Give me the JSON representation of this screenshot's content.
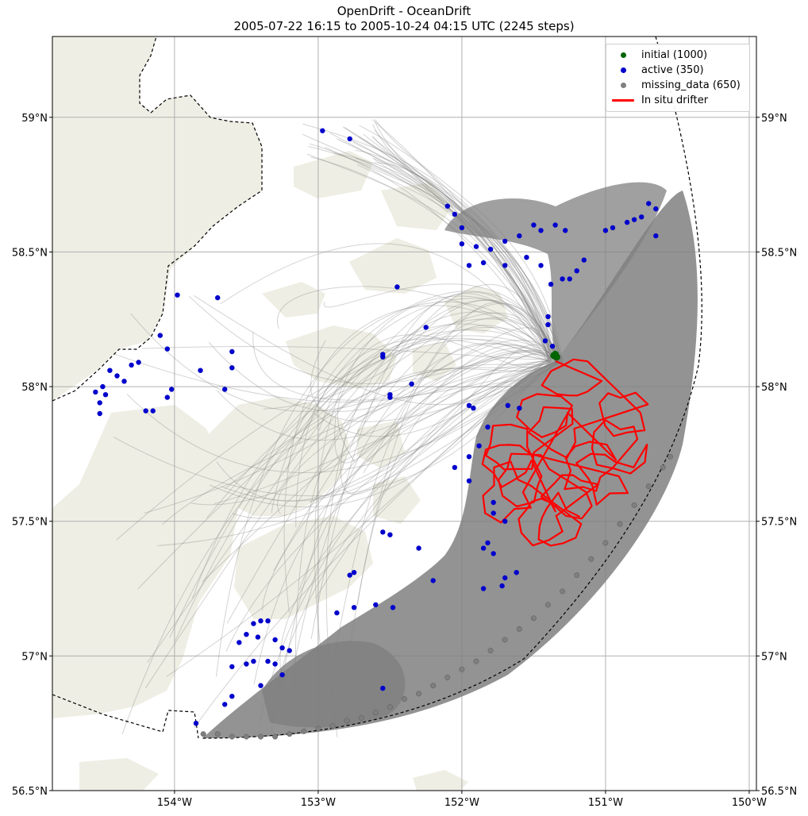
{
  "title": {
    "line1": "OpenDrift - OceanDrift",
    "line2": "2005-07-22 16:15 to 2005-10-24 04:15 UTC (2245 steps)"
  },
  "map": {
    "lon_range": [
      -154.85,
      -149.95
    ],
    "lat_range": [
      56.5,
      59.3
    ],
    "lon_ticks": [
      -154,
      -153,
      -152,
      -151,
      -150
    ],
    "lon_tick_labels": [
      "154°W",
      "153°W",
      "152°W",
      "151°W",
      "150°W"
    ],
    "lat_ticks": [
      56.5,
      57.0,
      57.5,
      58.0,
      58.5,
      59.0
    ],
    "lat_tick_labels": [
      "56.5°N",
      "57°N",
      "57.5°N",
      "58°N",
      "58.5°N",
      "59°N"
    ],
    "grid": true,
    "colors": {
      "land": "#eeeee4",
      "ocean": "#ffffff",
      "trajectory": "#808080",
      "initial": "#006400",
      "active": "#0000cc",
      "missing_data": "#7f7f7f",
      "drifter": "#ff0000",
      "boundary": "#000000"
    }
  },
  "legend": {
    "position": "top-right",
    "items": [
      {
        "label": "initial (1000)",
        "symbol": "dot",
        "color": "#006400"
      },
      {
        "label": "active (350)",
        "symbol": "dot",
        "color": "#0000cc"
      },
      {
        "label": "missing_data (650)",
        "symbol": "dot",
        "color": "#7f7f7f"
      },
      {
        "label": "In situ drifter",
        "symbol": "line",
        "color": "#ff0000"
      }
    ]
  },
  "chart_data": {
    "type": "scatter",
    "title": "OpenDrift - OceanDrift",
    "subtitle": "2005-07-22 16:15 to 2005-10-24 04:15 UTC (2245 steps)",
    "xlim": [
      -154.85,
      -149.95
    ],
    "ylim": [
      56.5,
      59.3
    ],
    "legend": "top-right",
    "series": [
      {
        "name": "initial (1000)",
        "points": [
          [
            -151.36,
            58.115
          ],
          [
            -151.34,
            58.11
          ],
          [
            -151.35,
            58.12
          ]
        ]
      },
      {
        "name": "active (350)",
        "points": [
          [
            -152.97,
            58.95
          ],
          [
            -152.78,
            58.92
          ],
          [
            -152.45,
            58.37
          ],
          [
            -153.98,
            58.34
          ],
          [
            -153.7,
            58.33
          ],
          [
            -154.1,
            58.19
          ],
          [
            -154.05,
            58.14
          ],
          [
            -153.6,
            58.13
          ],
          [
            -153.6,
            58.07
          ],
          [
            -153.82,
            58.06
          ],
          [
            -154.25,
            58.09
          ],
          [
            -154.3,
            58.08
          ],
          [
            -154.45,
            58.06
          ],
          [
            -154.4,
            58.04
          ],
          [
            -154.35,
            58.02
          ],
          [
            -154.5,
            58.0
          ],
          [
            -154.55,
            57.98
          ],
          [
            -154.48,
            57.97
          ],
          [
            -154.52,
            57.94
          ],
          [
            -154.52,
            57.9
          ],
          [
            -154.02,
            57.99
          ],
          [
            -154.05,
            57.96
          ],
          [
            -154.15,
            57.91
          ],
          [
            -154.2,
            57.91
          ],
          [
            -153.65,
            57.99
          ],
          [
            -152.55,
            58.12
          ],
          [
            -152.55,
            58.11
          ],
          [
            -152.25,
            58.22
          ],
          [
            -152.5,
            57.97
          ],
          [
            -152.5,
            57.96
          ],
          [
            -152.35,
            58.01
          ],
          [
            -152.05,
            57.7
          ],
          [
            -151.95,
            57.74
          ],
          [
            -151.88,
            57.78
          ],
          [
            -151.82,
            57.85
          ],
          [
            -151.78,
            57.57
          ],
          [
            -151.78,
            57.53
          ],
          [
            -151.7,
            57.5
          ],
          [
            -151.95,
            57.65
          ],
          [
            -151.85,
            57.4
          ],
          [
            -151.82,
            57.42
          ],
          [
            -151.78,
            57.38
          ],
          [
            -151.7,
            57.29
          ],
          [
            -151.62,
            57.31
          ],
          [
            -151.72,
            57.26
          ],
          [
            -151.85,
            57.25
          ],
          [
            -152.2,
            57.28
          ],
          [
            -152.3,
            57.4
          ],
          [
            -152.5,
            57.45
          ],
          [
            -152.55,
            57.46
          ],
          [
            -152.75,
            57.31
          ],
          [
            -152.78,
            57.3
          ],
          [
            -152.87,
            57.16
          ],
          [
            -152.75,
            57.18
          ],
          [
            -152.6,
            57.19
          ],
          [
            -152.48,
            57.18
          ],
          [
            -152.55,
            56.88
          ],
          [
            -153.4,
            57.13
          ],
          [
            -153.35,
            57.13
          ],
          [
            -153.45,
            57.12
          ],
          [
            -153.5,
            57.08
          ],
          [
            -153.55,
            57.05
          ],
          [
            -153.42,
            57.07
          ],
          [
            -153.3,
            57.06
          ],
          [
            -153.25,
            57.03
          ],
          [
            -153.2,
            57.02
          ],
          [
            -153.35,
            56.98
          ],
          [
            -153.5,
            56.97
          ],
          [
            -153.6,
            56.96
          ],
          [
            -153.45,
            56.98
          ],
          [
            -153.3,
            56.97
          ],
          [
            -153.25,
            56.93
          ],
          [
            -153.4,
            56.89
          ],
          [
            -153.6,
            56.85
          ],
          [
            -153.65,
            56.82
          ],
          [
            -153.85,
            56.75
          ],
          [
            -151.95,
            58.45
          ],
          [
            -151.85,
            58.46
          ],
          [
            -151.7,
            58.45
          ],
          [
            -151.55,
            58.48
          ],
          [
            -151.45,
            58.45
          ],
          [
            -151.38,
            58.38
          ],
          [
            -151.3,
            58.4
          ],
          [
            -151.25,
            58.4
          ],
          [
            -151.2,
            58.43
          ],
          [
            -151.15,
            58.47
          ],
          [
            -151.0,
            58.58
          ],
          [
            -150.95,
            58.59
          ],
          [
            -150.85,
            58.61
          ],
          [
            -150.8,
            58.62
          ],
          [
            -150.75,
            58.63
          ],
          [
            -150.7,
            58.68
          ],
          [
            -150.65,
            58.66
          ],
          [
            -150.65,
            58.56
          ],
          [
            -152.1,
            58.67
          ],
          [
            -152.05,
            58.64
          ],
          [
            -152.0,
            58.59
          ],
          [
            -152.0,
            58.53
          ],
          [
            -151.9,
            58.52
          ],
          [
            -151.8,
            58.51
          ],
          [
            -151.7,
            58.54
          ],
          [
            -151.6,
            58.56
          ],
          [
            -151.5,
            58.6
          ],
          [
            -151.45,
            58.58
          ],
          [
            -151.35,
            58.6
          ],
          [
            -151.28,
            58.58
          ],
          [
            -151.4,
            58.23
          ],
          [
            -151.4,
            58.26
          ],
          [
            -151.42,
            58.17
          ],
          [
            -151.37,
            58.15
          ],
          [
            -151.68,
            57.93
          ],
          [
            -151.6,
            57.92
          ],
          [
            -151.95,
            57.93
          ],
          [
            -151.92,
            57.92
          ]
        ]
      },
      {
        "name": "missing_data (650)",
        "points": [
          [
            -153.8,
            56.71
          ],
          [
            -153.7,
            56.71
          ],
          [
            -153.6,
            56.7
          ],
          [
            -153.5,
            56.7
          ],
          [
            -153.4,
            56.7
          ],
          [
            -153.3,
            56.7
          ],
          [
            -153.2,
            56.71
          ],
          [
            -153.1,
            56.72
          ],
          [
            -153.0,
            56.73
          ],
          [
            -152.9,
            56.74
          ],
          [
            -152.8,
            56.76
          ],
          [
            -152.7,
            56.77
          ],
          [
            -152.6,
            56.79
          ],
          [
            -152.5,
            56.81
          ],
          [
            -152.4,
            56.84
          ],
          [
            -152.3,
            56.86
          ],
          [
            -152.2,
            56.89
          ],
          [
            -152.1,
            56.92
          ],
          [
            -152.0,
            56.95
          ],
          [
            -151.9,
            56.98
          ],
          [
            -151.8,
            57.02
          ],
          [
            -151.7,
            57.06
          ],
          [
            -151.6,
            57.1
          ],
          [
            -151.5,
            57.14
          ],
          [
            -151.4,
            57.19
          ],
          [
            -151.3,
            57.24
          ],
          [
            -151.2,
            57.3
          ],
          [
            -151.1,
            57.36
          ],
          [
            -151.0,
            57.42
          ],
          [
            -150.9,
            57.49
          ],
          [
            -150.8,
            57.56
          ],
          [
            -150.7,
            57.63
          ],
          [
            -150.6,
            57.7
          ],
          [
            -150.55,
            57.74
          ]
        ]
      }
    ]
  }
}
